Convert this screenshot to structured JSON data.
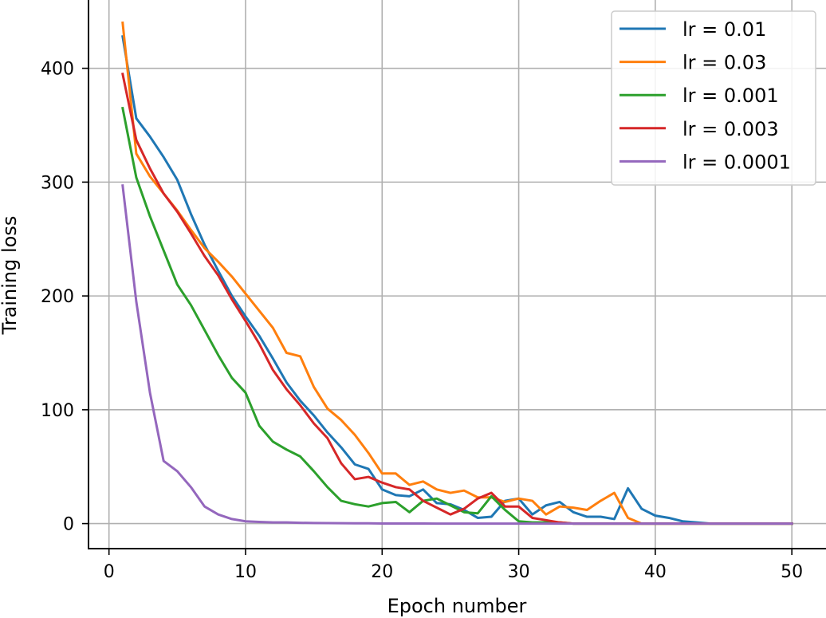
{
  "chart_data": {
    "type": "line",
    "title": "",
    "xlabel": "Epoch number",
    "ylabel": "Training loss",
    "xlim": [
      -1.5,
      52.5
    ],
    "ylim": [
      -22,
      460
    ],
    "xticks": [
      0,
      10,
      20,
      30,
      40,
      50
    ],
    "yticks": [
      0,
      100,
      200,
      300,
      400
    ],
    "grid": true,
    "legend_position": "top-right",
    "x": [
      1,
      2,
      3,
      4,
      5,
      6,
      7,
      8,
      9,
      10,
      11,
      12,
      13,
      14,
      15,
      16,
      17,
      18,
      19,
      20,
      21,
      22,
      23,
      24,
      25,
      26,
      27,
      28,
      29,
      30,
      31,
      32,
      33,
      34,
      35,
      36,
      37,
      38,
      39,
      40,
      41,
      42,
      43,
      44,
      45,
      46,
      47,
      48,
      49,
      50
    ],
    "series": [
      {
        "name": "lr = 0.01",
        "color": "#1f77b4",
        "values": [
          428,
          356,
          340,
          322,
          302,
          272,
          245,
          222,
          200,
          182,
          165,
          145,
          124,
          108,
          95,
          80,
          67,
          52,
          48,
          30,
          25,
          24,
          30,
          18,
          17,
          12,
          5,
          6,
          20,
          22,
          8,
          16,
          19,
          10,
          6,
          6,
          4,
          31,
          13,
          7,
          5,
          2,
          1,
          0,
          0,
          0,
          0,
          0,
          0,
          0
        ]
      },
      {
        "name": "lr = 0.03",
        "color": "#ff7f0e",
        "values": [
          440,
          325,
          305,
          290,
          275,
          258,
          242,
          230,
          217,
          202,
          187,
          172,
          150,
          147,
          120,
          101,
          91,
          78,
          62,
          44,
          44,
          34,
          37,
          30,
          27,
          29,
          23,
          23,
          19,
          22,
          20,
          8,
          15,
          14,
          12,
          20,
          27,
          5,
          0,
          0,
          0,
          0,
          0,
          0,
          0,
          0,
          0,
          0,
          0,
          0
        ]
      },
      {
        "name": "lr = 0.001",
        "color": "#2ca02c",
        "values": [
          365,
          304,
          270,
          240,
          210,
          192,
          170,
          148,
          128,
          115,
          86,
          72,
          65,
          59,
          46,
          32,
          20,
          17,
          15,
          18,
          19,
          10,
          20,
          22,
          16,
          10,
          9,
          24,
          12,
          2,
          1,
          1,
          1,
          0,
          0,
          0,
          0,
          0,
          0,
          0,
          0,
          0,
          0,
          0,
          0,
          0,
          0,
          0,
          0,
          0
        ]
      },
      {
        "name": "lr = 0.003",
        "color": "#d62728",
        "values": [
          395,
          337,
          312,
          290,
          274,
          255,
          235,
          218,
          197,
          178,
          158,
          135,
          118,
          104,
          88,
          75,
          53,
          39,
          41,
          36,
          32,
          30,
          20,
          14,
          8,
          13,
          22,
          27,
          15,
          15,
          5,
          3,
          1,
          0,
          0,
          0,
          0,
          0,
          0,
          0,
          0,
          0,
          0,
          0,
          0,
          0,
          0,
          0,
          0,
          0
        ]
      },
      {
        "name": "lr = 0.0001",
        "color": "#9467bd",
        "values": [
          297,
          195,
          115,
          55,
          46,
          32,
          15,
          8,
          4,
          2,
          1.5,
          1,
          1,
          0.7,
          0.5,
          0.4,
          0.3,
          0.2,
          0.2,
          0.1,
          0.1,
          0.1,
          0.1,
          0,
          0,
          0,
          0,
          0,
          0,
          0,
          0,
          0,
          0,
          0,
          0,
          0,
          0,
          0,
          0,
          0,
          0,
          0,
          0,
          0,
          0,
          0,
          0,
          0,
          0,
          0
        ]
      }
    ]
  }
}
